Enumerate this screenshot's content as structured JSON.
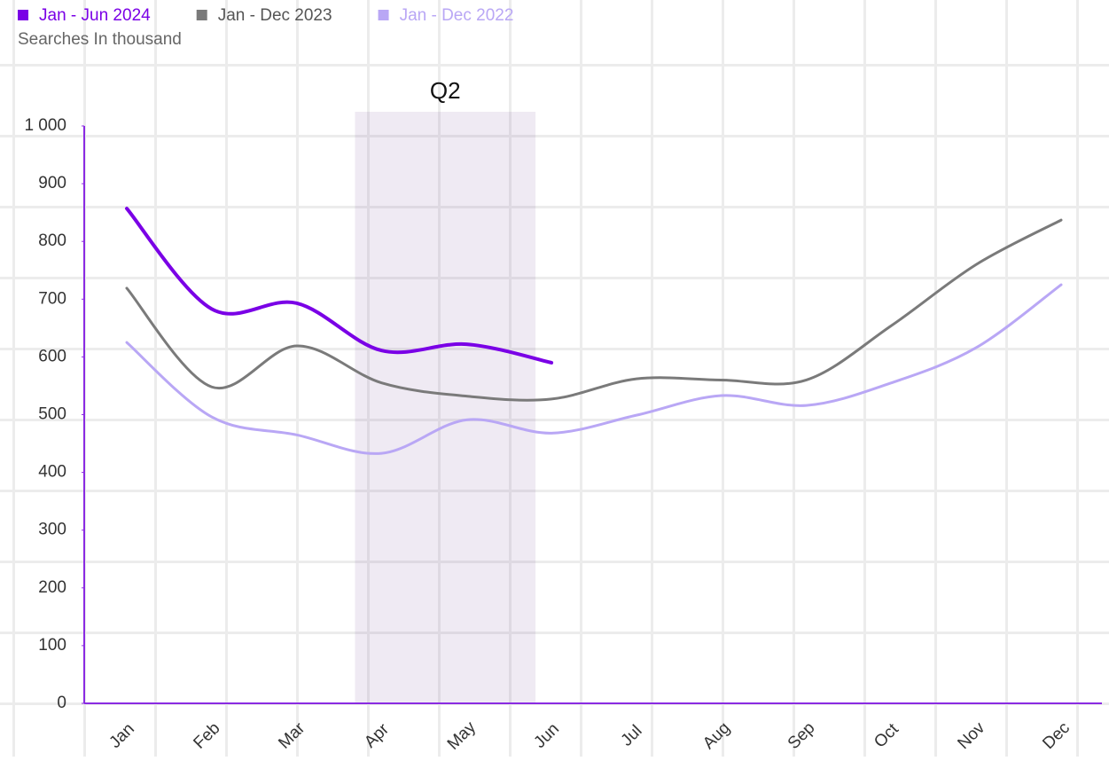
{
  "chart_data": {
    "type": "line",
    "subtitle": "Searches In thousand",
    "categories": [
      "Jan",
      "Feb",
      "Mar",
      "Apr",
      "May",
      "Jun",
      "Jul",
      "Aug",
      "Sep",
      "Oct",
      "Nov",
      "Dec"
    ],
    "series": [
      {
        "name": "Jan - Jun 2024",
        "color": "#7a00e6",
        "values": [
          857,
          683,
          693,
          611,
          622,
          590,
          null,
          null,
          null,
          null,
          null,
          null
        ]
      },
      {
        "name": "Jan - Dec 2023",
        "color": "#7a7a7a",
        "values": [
          719,
          548,
          619,
          555,
          532,
          527,
          562,
          560,
          560,
          654,
          760,
          837
        ]
      },
      {
        "name": "Jan - Dec 2022",
        "color": "#b9a7f5",
        "values": [
          625,
          496,
          465,
          433,
          491,
          468,
          499,
          533,
          516,
          555,
          616,
          725
        ]
      }
    ],
    "ylim": [
      0,
      1000
    ],
    "yticks": [
      0,
      100,
      200,
      300,
      400,
      500,
      600,
      700,
      800,
      900,
      {
        "value": 1000,
        "label": "1 000"
      }
    ],
    "annotations": [
      {
        "text": "Q2",
        "from": "Apr",
        "to": "Jun"
      }
    ]
  }
}
